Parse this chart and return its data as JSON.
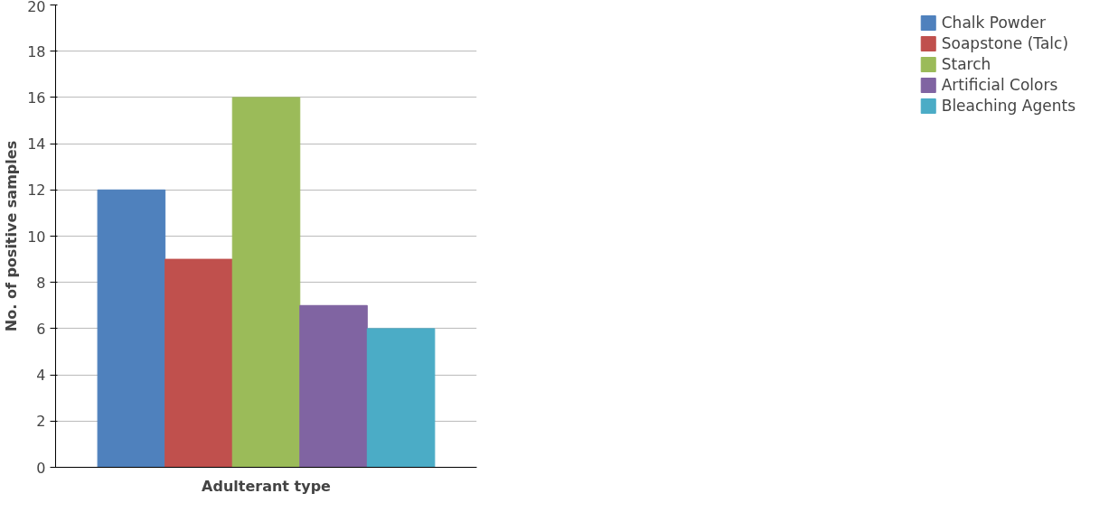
{
  "chart_data": {
    "type": "bar",
    "xlabel": "Adulterant type",
    "ylabel": "No. of positive samples",
    "categories": [
      null
    ],
    "series": [
      {
        "name": "Chalk Powder",
        "color": "#4f81bd",
        "values": [
          12
        ]
      },
      {
        "name": "Soapstone (Talc)",
        "color": "#c0504d",
        "values": [
          9
        ]
      },
      {
        "name": "Starch",
        "color": "#9bbb59",
        "values": [
          16
        ]
      },
      {
        "name": "Artificial Colors",
        "color": "#8064a2",
        "values": [
          7
        ]
      },
      {
        "name": "Bleaching Agents",
        "color": "#4bacc6",
        "values": [
          6
        ]
      }
    ],
    "ylim": [
      0,
      20
    ],
    "yticks": [
      0,
      2,
      4,
      6,
      8,
      10,
      12,
      14,
      16,
      18,
      20
    ],
    "grid": "y",
    "legend": "right"
  }
}
